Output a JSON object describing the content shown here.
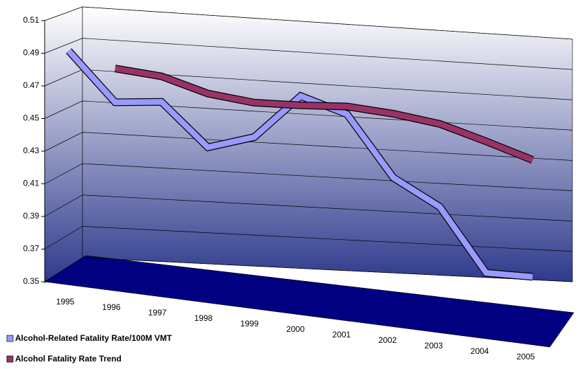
{
  "chart_data": {
    "type": "line3d",
    "categories": [
      "1995",
      "1996",
      "1997",
      "1998",
      "1999",
      "2000",
      "2001",
      "2002",
      "2003",
      "2004",
      "2005"
    ],
    "series": [
      {
        "name": "Alcohol-Related Fatality Rate/100M VMT",
        "color": "#9999ff",
        "values": [
          0.492,
          0.461,
          0.462,
          0.434,
          0.441,
          0.468,
          0.457,
          0.416,
          0.397,
          0.353,
          0.35
        ]
      },
      {
        "name": "Alcohol Fatality Rate Trend",
        "color": "#993366",
        "values": [
          null,
          0.482,
          0.478,
          0.468,
          0.463,
          0.462,
          0.462,
          0.458,
          0.452,
          0.441,
          0.429
        ]
      }
    ],
    "ylim": [
      0.35,
      0.51
    ],
    "yticks": [
      0.35,
      0.37,
      0.39,
      0.41,
      0.43,
      0.45,
      0.47,
      0.49,
      0.51
    ],
    "grid": true,
    "legend": "bottom-left"
  }
}
